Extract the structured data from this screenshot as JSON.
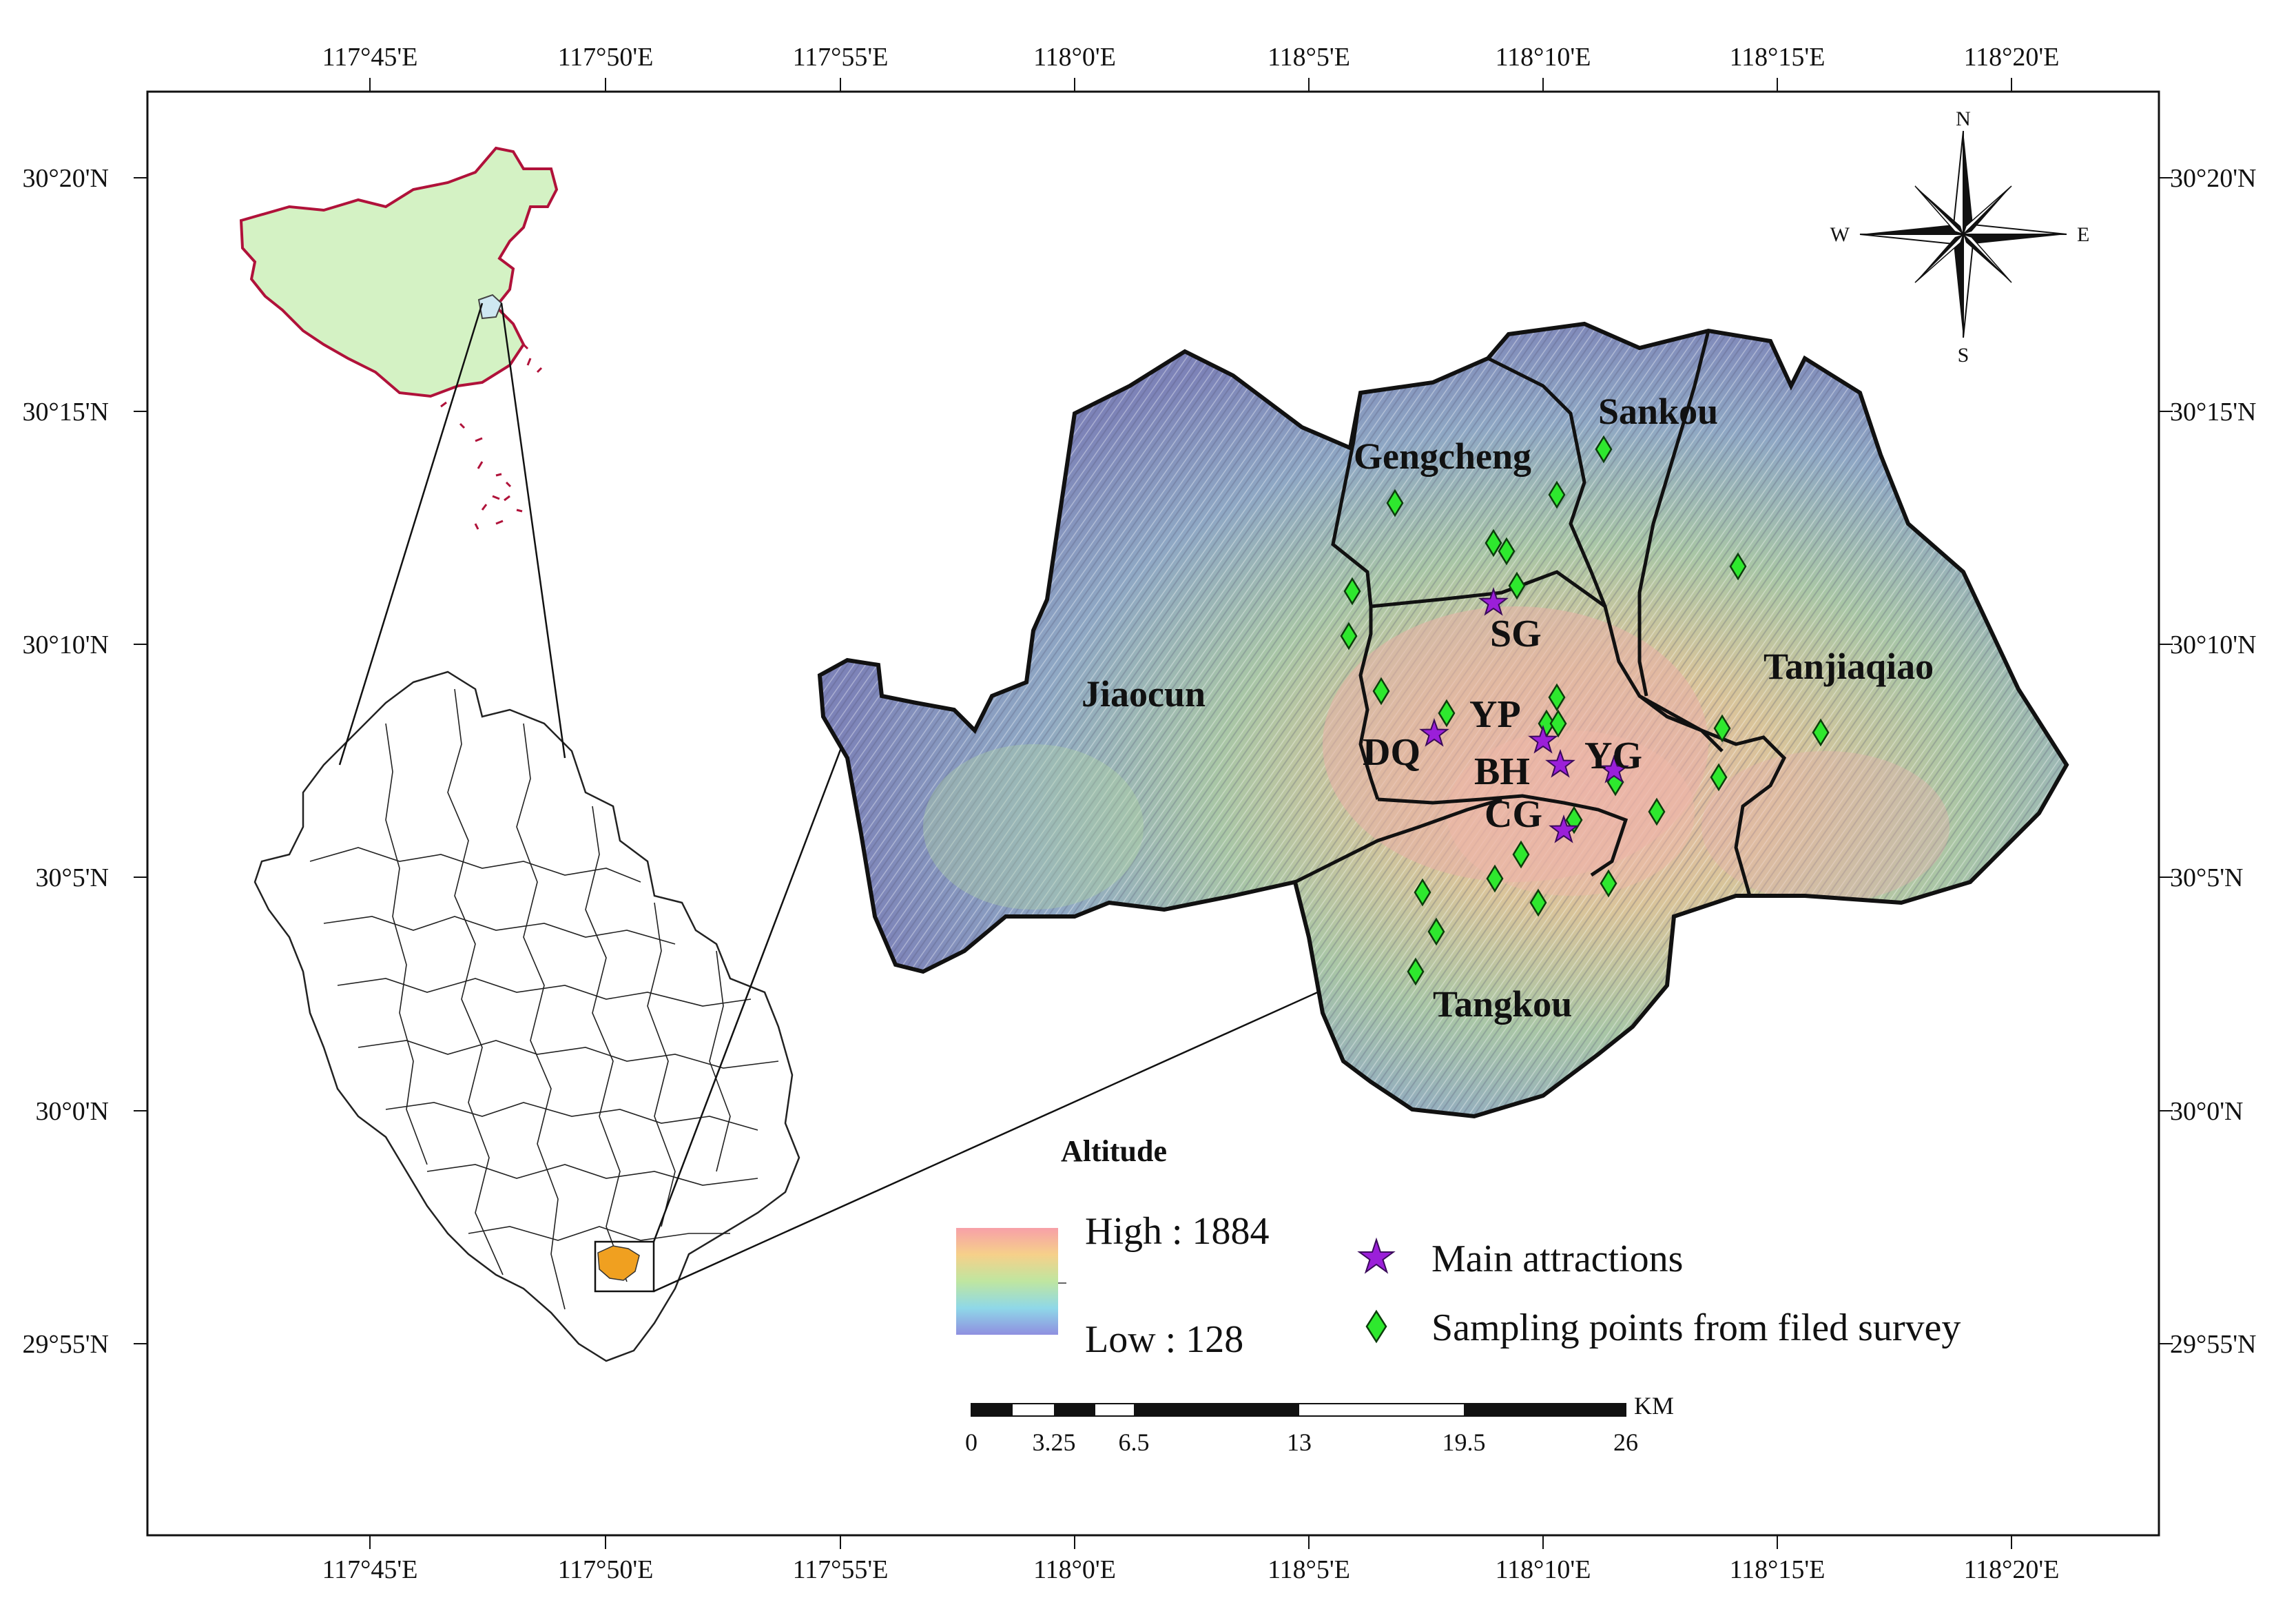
{
  "map": {
    "longitude_ticks": [
      "117°45'E",
      "117°50'E",
      "117°55'E",
      "118°0'E",
      "118°5'E",
      "118°10'E",
      "118°15'E",
      "118°20'E"
    ],
    "latitude_ticks": [
      "30°20'N",
      "30°15'N",
      "30°10'N",
      "30°5'N",
      "30°0'N",
      "29°55'N"
    ],
    "towns": [
      "Jiaocun",
      "Gengcheng",
      "Sankou",
      "Tanjiaqiao",
      "Tangkou"
    ],
    "attractions": [
      "SG",
      "YP",
      "DQ",
      "BH",
      "YG",
      "CG"
    ],
    "compass": {
      "n": "N",
      "s": "S",
      "e": "E",
      "w": "W"
    }
  },
  "legend": {
    "altitude_title": "Altitude",
    "high_label": "High : 1884",
    "low_label": "Low : 128",
    "main_attractions": "Main attractions",
    "sampling_points": "Sampling points from filed survey",
    "colors": {
      "attraction": "#9b1fd9",
      "sampling": "#2ee82e",
      "china": "#d4f2c4",
      "china_border": "#b0123a",
      "county_fill": "#f0a020"
    }
  },
  "scale_bar": {
    "unit": "KM",
    "labels": [
      "0",
      "3.25",
      "6.5",
      "13",
      "19.5",
      "26"
    ]
  }
}
